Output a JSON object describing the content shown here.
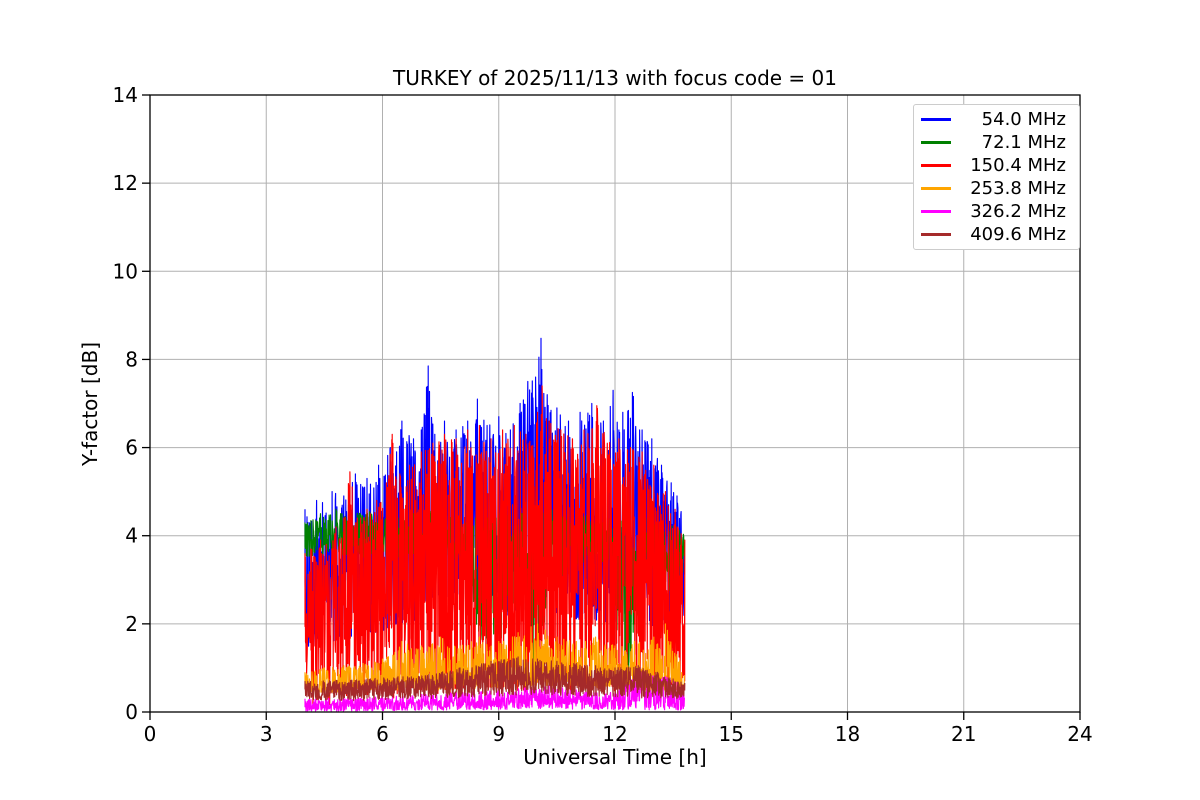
{
  "figure": {
    "background": "#ffffff",
    "grid_color": "#b0b0b0",
    "spine_color": "#000000",
    "legend_border_color": "#cccccc"
  },
  "chart_data": {
    "type": "line",
    "title": "TURKEY of 2025/11/13 with focus code = 01",
    "xlabel": "Universal Time [h]",
    "ylabel": "Y-factor [dB]",
    "xlim": [
      0,
      24
    ],
    "ylim": [
      0,
      14
    ],
    "xticks": [
      0,
      3,
      6,
      9,
      12,
      15,
      18,
      21,
      24
    ],
    "yticks": [
      0,
      2,
      4,
      6,
      8,
      10,
      12,
      14
    ],
    "grid": true,
    "legend_position": "upper right",
    "data_time_range_h": [
      4.0,
      13.8
    ],
    "encoding": "Each series is dense noise; envelope = [time_h, min_dB, max_dB] keyframes read from the plot; values fluctuate inside the envelope and touch max at keyframes.",
    "series": [
      {
        "name": "54.0 MHz",
        "color": "#0000ff",
        "dt": 0.0085,
        "bias": 1.45,
        "spike": 0.06,
        "envelope": [
          [
            4.0,
            1.4,
            4.6
          ],
          [
            4.3,
            1.5,
            4.8
          ],
          [
            4.7,
            1.6,
            5.0
          ],
          [
            5.0,
            1.6,
            4.9
          ],
          [
            5.3,
            1.7,
            5.4
          ],
          [
            5.6,
            1.8,
            5.3
          ],
          [
            5.9,
            1.8,
            5.6
          ],
          [
            6.2,
            1.9,
            6.0
          ],
          [
            6.5,
            2.0,
            6.6
          ],
          [
            6.8,
            2.0,
            6.2
          ],
          [
            7.0,
            2.0,
            6.4
          ],
          [
            7.18,
            2.0,
            7.85
          ],
          [
            7.35,
            2.0,
            6.3
          ],
          [
            7.6,
            2.1,
            6.6
          ],
          [
            7.9,
            2.1,
            6.4
          ],
          [
            8.2,
            2.2,
            6.6
          ],
          [
            8.45,
            2.2,
            7.1
          ],
          [
            8.7,
            2.2,
            6.5
          ],
          [
            9.0,
            2.2,
            6.7
          ],
          [
            9.3,
            2.2,
            6.4
          ],
          [
            9.55,
            2.3,
            7.0
          ],
          [
            9.75,
            2.3,
            7.5
          ],
          [
            9.95,
            2.4,
            7.6
          ],
          [
            10.09,
            2.5,
            8.48
          ],
          [
            10.25,
            2.3,
            7.2
          ],
          [
            10.5,
            2.2,
            6.9
          ],
          [
            10.8,
            2.1,
            6.6
          ],
          [
            11.1,
            2.1,
            6.8
          ],
          [
            11.4,
            2.1,
            7.0
          ],
          [
            11.7,
            2.0,
            6.6
          ],
          [
            11.95,
            2.0,
            7.3
          ],
          [
            12.2,
            2.0,
            6.8
          ],
          [
            12.45,
            2.0,
            7.25
          ],
          [
            12.7,
            2.0,
            6.4
          ],
          [
            12.95,
            1.9,
            6.2
          ],
          [
            13.2,
            1.9,
            5.6
          ],
          [
            13.45,
            1.9,
            5.2
          ],
          [
            13.6,
            2.0,
            4.9
          ],
          [
            13.8,
            2.2,
            4.6
          ]
        ]
      },
      {
        "name": "72.1 MHz",
        "color": "#008000",
        "dt": 0.009,
        "bias": 1.0,
        "spike": 0.03,
        "envelope": [
          [
            4.0,
            3.4,
            4.3
          ],
          [
            4.4,
            3.5,
            4.5
          ],
          [
            4.8,
            3.6,
            4.6
          ],
          [
            5.2,
            3.5,
            4.5
          ],
          [
            5.6,
            3.5,
            4.6
          ],
          [
            6.0,
            3.4,
            4.5
          ],
          [
            6.4,
            3.5,
            4.4
          ],
          [
            6.8,
            3.5,
            4.5
          ],
          [
            7.2,
            3.6,
            4.6
          ],
          [
            7.6,
            3.5,
            4.5
          ],
          [
            8.0,
            3.4,
            4.4
          ],
          [
            8.4,
            2.0,
            4.4
          ],
          [
            8.7,
            1.2,
            4.4
          ],
          [
            9.0,
            1.5,
            4.5
          ],
          [
            9.3,
            1.8,
            4.5
          ],
          [
            9.6,
            2.5,
            4.5
          ],
          [
            10.0,
            0.3,
            4.5
          ],
          [
            10.3,
            2.8,
            4.6
          ],
          [
            10.8,
            3.2,
            4.5
          ],
          [
            11.3,
            3.3,
            4.5
          ],
          [
            11.8,
            3.3,
            4.4
          ],
          [
            12.3,
            0.3,
            4.4
          ],
          [
            12.8,
            3.2,
            4.4
          ],
          [
            13.2,
            3.3,
            4.3
          ],
          [
            13.6,
            2.0,
            4.2
          ],
          [
            13.8,
            3.2,
            4.0
          ]
        ]
      },
      {
        "name": "150.4 MHz",
        "color": "#ff0000",
        "dt": 0.007,
        "bias": 1.15,
        "spike": 0.1,
        "envelope": [
          [
            4.0,
            0.3,
            3.6
          ],
          [
            4.15,
            0.05,
            3.7
          ],
          [
            4.4,
            0.3,
            3.9
          ],
          [
            4.55,
            0.05,
            3.8
          ],
          [
            4.8,
            0.3,
            4.2
          ],
          [
            5.0,
            0.3,
            4.4
          ],
          [
            5.16,
            0.3,
            5.45
          ],
          [
            5.35,
            0.3,
            4.4
          ],
          [
            5.6,
            0.3,
            4.6
          ],
          [
            5.85,
            0.3,
            4.8
          ],
          [
            6.1,
            0.3,
            5.2
          ],
          [
            6.25,
            0.3,
            6.3
          ],
          [
            6.45,
            0.3,
            5.4
          ],
          [
            6.7,
            0.35,
            5.6
          ],
          [
            7.0,
            0.35,
            5.9
          ],
          [
            7.3,
            0.35,
            6.1
          ],
          [
            7.6,
            0.4,
            6.3
          ],
          [
            7.9,
            0.4,
            6.2
          ],
          [
            8.2,
            0.4,
            6.4
          ],
          [
            8.5,
            0.4,
            6.5
          ],
          [
            8.8,
            0.4,
            6.2
          ],
          [
            9.1,
            0.4,
            6.4
          ],
          [
            9.4,
            0.45,
            6.5
          ],
          [
            9.7,
            0.45,
            6.3
          ],
          [
            10.0,
            0.5,
            6.8
          ],
          [
            10.12,
            0.5,
            7.4
          ],
          [
            10.3,
            0.5,
            6.6
          ],
          [
            10.6,
            0.45,
            6.4
          ],
          [
            10.9,
            0.45,
            6.2
          ],
          [
            11.2,
            0.45,
            6.4
          ],
          [
            11.53,
            0.45,
            6.95
          ],
          [
            11.8,
            0.4,
            6.1
          ],
          [
            12.1,
            0.4,
            6.2
          ],
          [
            12.4,
            0.4,
            6.0
          ],
          [
            12.7,
            0.4,
            5.9
          ],
          [
            13.0,
            0.4,
            5.6
          ],
          [
            13.3,
            0.35,
            5.0
          ],
          [
            13.55,
            0.35,
            4.6
          ],
          [
            13.8,
            0.3,
            3.9
          ]
        ]
      },
      {
        "name": "253.8 MHz",
        "color": "#ffa500",
        "dt": 0.009,
        "bias": 2.0,
        "spike": 0.05,
        "envelope": [
          [
            4.0,
            0.45,
            0.9
          ],
          [
            4.5,
            0.45,
            1.0
          ],
          [
            5.0,
            0.45,
            1.05
          ],
          [
            5.5,
            0.5,
            1.1
          ],
          [
            6.0,
            0.5,
            1.2
          ],
          [
            6.5,
            0.5,
            1.6
          ],
          [
            7.0,
            0.5,
            1.5
          ],
          [
            7.5,
            0.5,
            1.7
          ],
          [
            8.0,
            0.5,
            1.5
          ],
          [
            8.5,
            0.55,
            1.7
          ],
          [
            9.0,
            0.55,
            1.6
          ],
          [
            9.5,
            0.6,
            1.8
          ],
          [
            10.0,
            0.6,
            2.0
          ],
          [
            10.5,
            0.6,
            1.7
          ],
          [
            11.0,
            0.6,
            1.6
          ],
          [
            11.5,
            0.55,
            1.7
          ],
          [
            12.0,
            0.55,
            1.5
          ],
          [
            12.5,
            0.5,
            1.6
          ],
          [
            13.0,
            0.5,
            1.7
          ],
          [
            13.3,
            0.5,
            2.0
          ],
          [
            13.6,
            0.5,
            1.3
          ],
          [
            13.8,
            0.5,
            1.1
          ]
        ]
      },
      {
        "name": "326.2 MHz",
        "color": "#ff00ff",
        "dt": 0.009,
        "bias": 1.3,
        "spike": 0.04,
        "envelope": [
          [
            4.0,
            0.02,
            0.3
          ],
          [
            5.0,
            0.02,
            0.32
          ],
          [
            6.0,
            0.03,
            0.35
          ],
          [
            7.0,
            0.04,
            0.4
          ],
          [
            8.0,
            0.05,
            0.45
          ],
          [
            9.0,
            0.05,
            0.5
          ],
          [
            9.7,
            0.08,
            0.55
          ],
          [
            10.3,
            0.08,
            0.6
          ],
          [
            11.0,
            0.06,
            0.5
          ],
          [
            12.0,
            0.05,
            0.45
          ],
          [
            12.7,
            0.05,
            0.9
          ],
          [
            13.3,
            0.05,
            0.8
          ],
          [
            13.8,
            0.04,
            0.6
          ]
        ]
      },
      {
        "name": "409.6 MHz",
        "color": "#a52a2a",
        "dt": 0.008,
        "bias": 1.0,
        "spike": 0.03,
        "envelope": [
          [
            4.0,
            0.25,
            0.7
          ],
          [
            4.8,
            0.25,
            0.72
          ],
          [
            5.6,
            0.27,
            0.75
          ],
          [
            6.4,
            0.28,
            0.8
          ],
          [
            7.2,
            0.3,
            0.85
          ],
          [
            8.0,
            0.32,
            1.0
          ],
          [
            8.8,
            0.35,
            1.15
          ],
          [
            9.5,
            0.38,
            1.25
          ],
          [
            10.0,
            0.4,
            1.2
          ],
          [
            10.5,
            0.38,
            1.15
          ],
          [
            11.0,
            0.36,
            1.1
          ],
          [
            11.5,
            0.35,
            1.05
          ],
          [
            12.0,
            0.33,
            1.0
          ],
          [
            12.6,
            0.32,
            1.05
          ],
          [
            13.1,
            0.3,
            0.9
          ],
          [
            13.5,
            0.3,
            0.75
          ],
          [
            13.8,
            0.3,
            0.65
          ]
        ]
      }
    ]
  }
}
